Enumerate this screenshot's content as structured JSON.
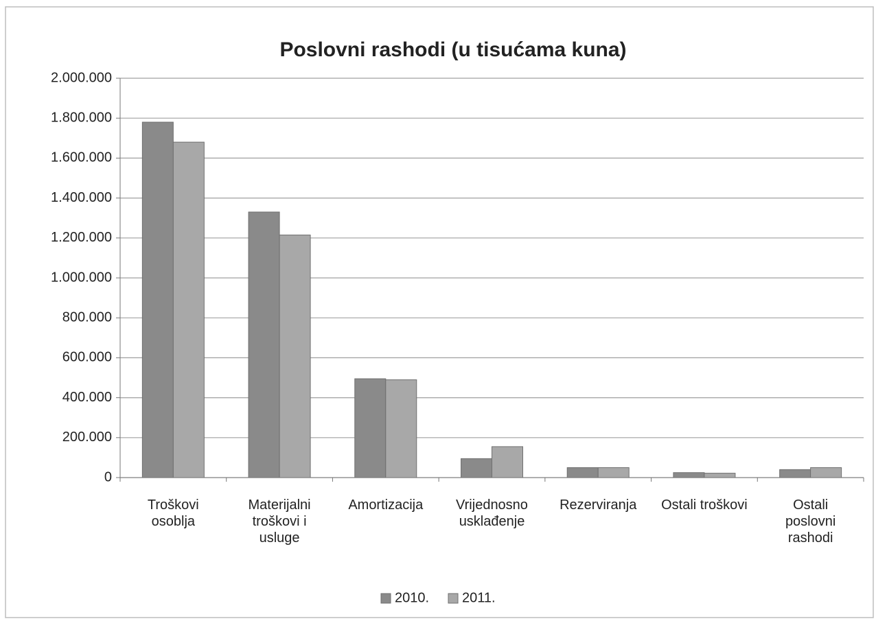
{
  "chart_data": {
    "type": "bar",
    "title": "Poslovni rashodi (u tisućama kuna)",
    "categories": [
      "Troškovi osoblja",
      "Materijalni troškovi i usluge",
      "Amortizacija",
      "Vrijednosno usklađenje",
      "Rezerviranja",
      "Ostali troškovi",
      "Ostali poslovni rashodi"
    ],
    "series": [
      {
        "name": "2010.",
        "color": "#8a8a8a",
        "values": [
          1780000,
          1330000,
          495000,
          95000,
          50000,
          25000,
          40000
        ]
      },
      {
        "name": "2011.",
        "color": "#a8a8a8",
        "values": [
          1680000,
          1215000,
          490000,
          155000,
          50000,
          22000,
          50000
        ]
      }
    ],
    "ylim": [
      0,
      2000000
    ],
    "yticks": [
      0,
      {
        "value": 200000,
        "label": "200.000"
      },
      {
        "value": 400000,
        "label": "400.000"
      },
      {
        "value": 600000,
        "label": "600.000"
      },
      {
        "value": 800000,
        "label": "800.000"
      },
      {
        "value": 1000000,
        "label": "1.000.000"
      },
      {
        "value": 1200000,
        "label": "1.200.000"
      },
      {
        "value": 1400000,
        "label": "1.400.000"
      },
      {
        "value": 1600000,
        "label": "1.600.000"
      },
      {
        "value": 1800000,
        "label": "1.800.000"
      },
      {
        "value": 2000000,
        "label": "2.000.000"
      }
    ],
    "grid": true,
    "legend": "bottom"
  }
}
